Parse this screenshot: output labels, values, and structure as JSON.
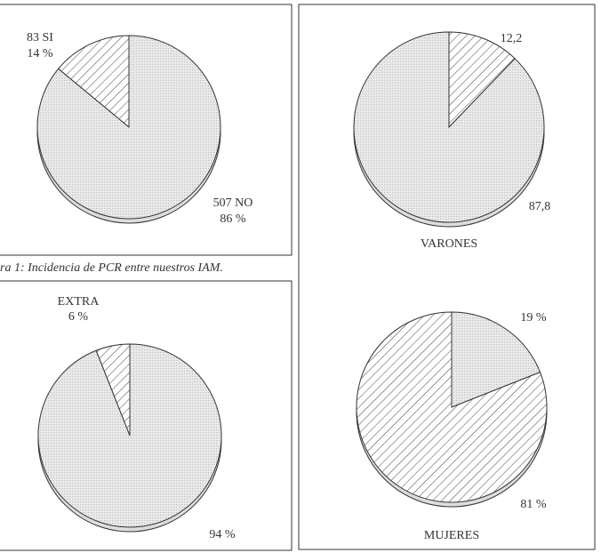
{
  "chart_data": [
    {
      "type": "pie",
      "categories": [
        "83 SI",
        "507 NO"
      ],
      "values": [
        14,
        86
      ],
      "value_labels": [
        "14 %",
        "86 %"
      ],
      "fills": [
        "hatch",
        "dots"
      ],
      "clockwise": false,
      "caption": "ra 1: Incidencia de PCR entre nuestros IAM."
    },
    {
      "type": "pie",
      "categories": [
        "EXTRA",
        null
      ],
      "values": [
        6,
        94
      ],
      "value_labels": [
        "6 %",
        "94 %"
      ],
      "fills": [
        "hatch",
        "dots"
      ],
      "clockwise": false
    },
    {
      "type": "pie",
      "title": "VARONES",
      "categories": [
        null,
        null
      ],
      "values": [
        12.2,
        87.8
      ],
      "value_labels": [
        "12,2",
        "87,8"
      ],
      "fills": [
        "hatch",
        "dots"
      ],
      "clockwise": true
    },
    {
      "type": "pie",
      "title": "MUJERES",
      "categories": [
        null,
        null
      ],
      "values": [
        19,
        81
      ],
      "value_labels": [
        "19 %",
        "81 %"
      ],
      "fills": [
        "dots",
        "hatch"
      ],
      "clockwise": true
    }
  ]
}
